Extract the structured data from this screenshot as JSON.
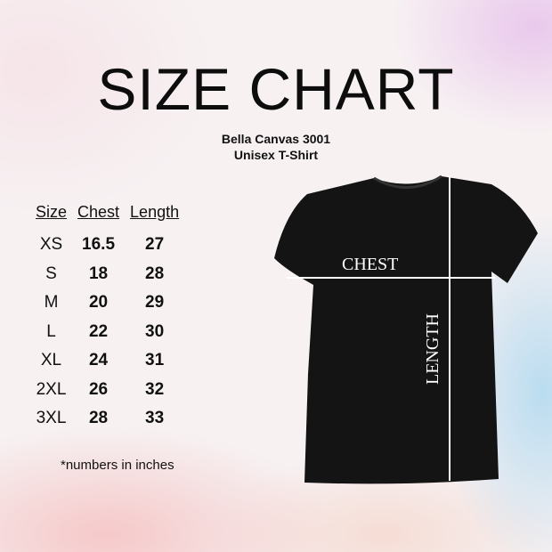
{
  "title": "SIZE CHART",
  "product": {
    "brand_model": "Bella Canvas 3001",
    "type": "Unisex T-Shirt"
  },
  "table": {
    "headers": [
      "Size",
      "Chest",
      "Length"
    ],
    "rows": [
      [
        "XS",
        "16.5",
        "27"
      ],
      [
        "S",
        "18",
        "28"
      ],
      [
        "M",
        "20",
        "29"
      ],
      [
        "L",
        "22",
        "30"
      ],
      [
        "XL",
        "24",
        "31"
      ],
      [
        "2XL",
        "26",
        "32"
      ],
      [
        "3XL",
        "28",
        "33"
      ]
    ]
  },
  "note": "*numbers in inches",
  "shirt": {
    "color": "#141414",
    "chest_label": "CHEST",
    "length_label": "LENGTH"
  }
}
